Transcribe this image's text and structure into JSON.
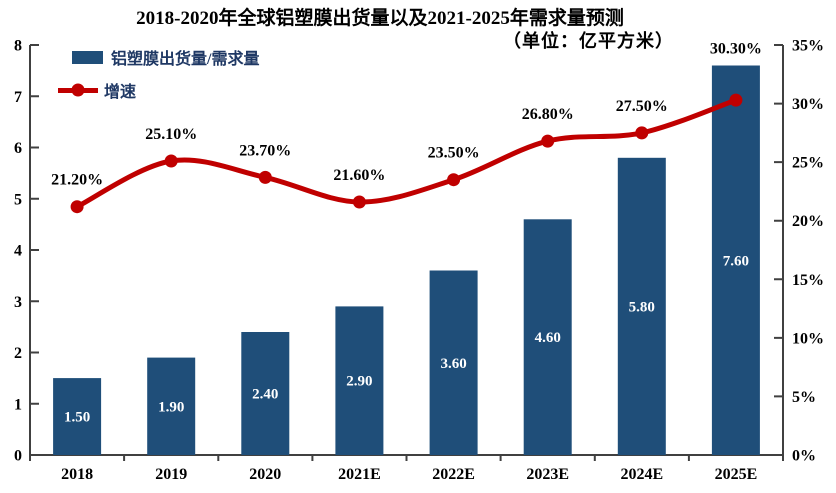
{
  "title": "2018-2020年全球铝塑膜出货量以及2021-2025年需求量预测",
  "subtitle": "（单位：亿平方米）",
  "legend": {
    "bar_label": "铝塑膜出货量/需求量",
    "line_label": "增速"
  },
  "colors": {
    "bar": "#1F4E79",
    "line": "#C00000",
    "axis": "#404040",
    "text": "#000000",
    "legend_text": "#1F3864",
    "bar_value_label": "#FFFFFF"
  },
  "chart_data": {
    "type": "bar+line",
    "categories": [
      "2018",
      "2019",
      "2020",
      "2021E",
      "2022E",
      "2023E",
      "2024E",
      "2025E"
    ],
    "series": [
      {
        "name": "铝塑膜出货量/需求量",
        "type": "bar",
        "axis": "left",
        "values": [
          1.5,
          1.9,
          2.4,
          2.9,
          3.6,
          4.6,
          5.8,
          7.6
        ],
        "value_labels": [
          "1.50",
          "1.90",
          "2.40",
          "2.90",
          "3.60",
          "4.60",
          "5.80",
          "7.60"
        ]
      },
      {
        "name": "增速",
        "type": "line",
        "axis": "right",
        "values": [
          21.2,
          25.1,
          23.7,
          21.6,
          23.5,
          26.8,
          27.5,
          30.3
        ],
        "value_labels": [
          "21.20%",
          "25.10%",
          "23.70%",
          "21.60%",
          "23.50%",
          "26.80%",
          "27.50%",
          "30.30%"
        ]
      }
    ],
    "left_axis": {
      "min": 0,
      "max": 8,
      "step": 1,
      "tick_labels": [
        "0",
        "1",
        "2",
        "3",
        "4",
        "5",
        "6",
        "7",
        "8"
      ]
    },
    "right_axis": {
      "min": 0,
      "max": 35,
      "step": 5,
      "tick_labels": [
        "0%",
        "5%",
        "10%",
        "15%",
        "20%",
        "25%",
        "30%",
        "35%"
      ]
    },
    "grid": false,
    "legend_position": "top-left"
  }
}
